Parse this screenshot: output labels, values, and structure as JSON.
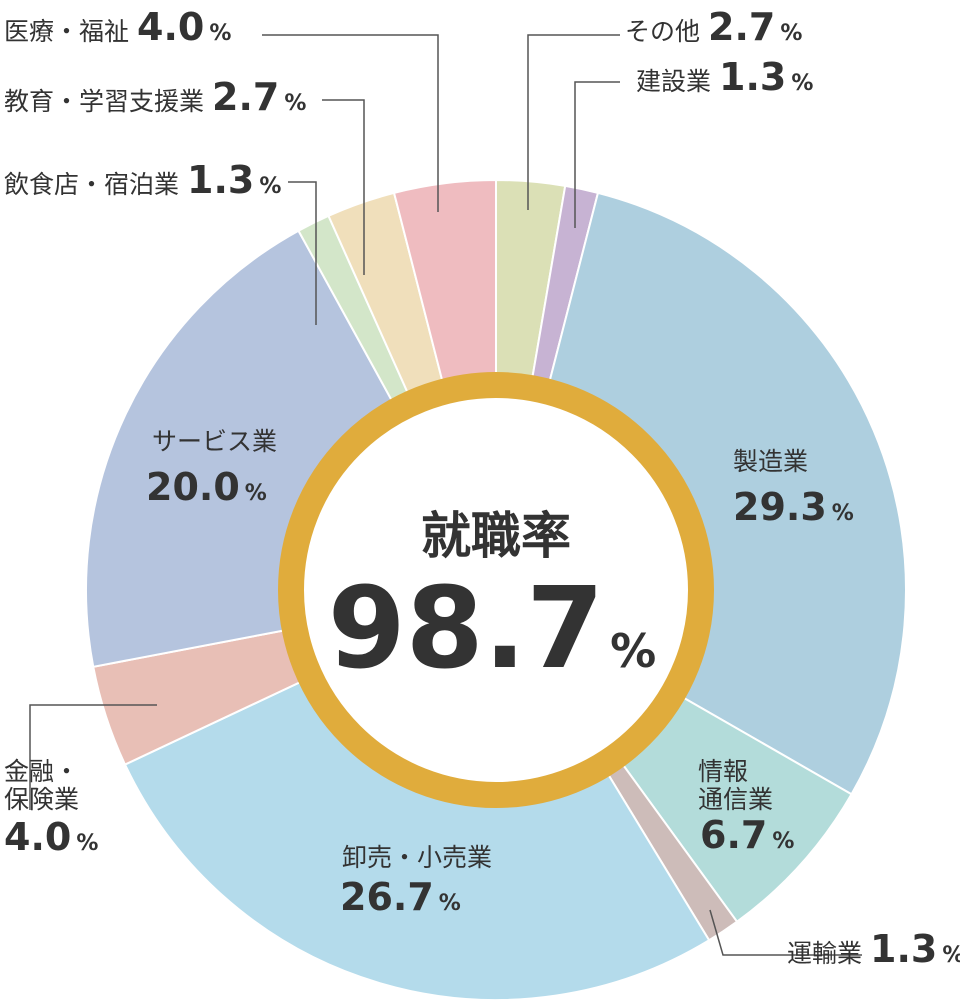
{
  "chart_data": {
    "type": "pie",
    "center": {
      "title": "就職率",
      "value": "98.7",
      "unit": "%"
    },
    "unit": "%",
    "slices": [
      {
        "label": "その他",
        "value": 2.7,
        "color": "#dbe0b6"
      },
      {
        "label": "建設業",
        "value": 1.3,
        "color": "#c7b3d3"
      },
      {
        "label": "製造業",
        "value": 29.3,
        "color": "#aecfdf"
      },
      {
        "label": "情報通信業",
        "label_lines": [
          "情報",
          "通信業"
        ],
        "value": 6.7,
        "color": "#b3dcda"
      },
      {
        "label": "運輸業",
        "value": 1.3,
        "color": "#cdbcb9"
      },
      {
        "label": "卸売・小売業",
        "value": 26.7,
        "color": "#b4dbeb"
      },
      {
        "label": "金融・保険業",
        "label_lines": [
          "金融・",
          "保険業"
        ],
        "value": 4.0,
        "color": "#e8bfb6"
      },
      {
        "label": "サービス業",
        "value": 20.0,
        "color": "#b5c4de"
      },
      {
        "label": "飲食店・宿泊業",
        "value": 1.3,
        "color": "#d3e6c9"
      },
      {
        "label": "教育・学習支援業",
        "value": 2.7,
        "color": "#f0dfbb"
      },
      {
        "label": "医療・福祉",
        "value": 4.0,
        "color": "#efbcc0"
      }
    ],
    "ring_color": "#e0ac3c"
  }
}
